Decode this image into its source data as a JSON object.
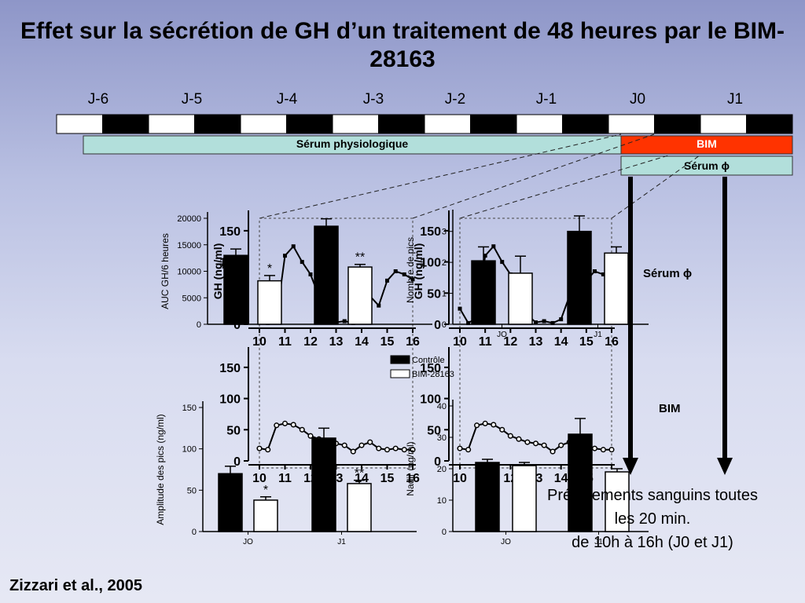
{
  "slide": {
    "title": "Effet sur la sécrétion de GH d’un traitement de 48 heures par le BIM-28163",
    "credit": "Zizzari et al., 2005",
    "note_line1": "Prélèvements sanguins toutes",
    "note_line2": "les 20 min.",
    "note_line3": "de 10h à 16h (J0 et J1)",
    "label_serum_right": "Sérum ϕ",
    "label_bim_right": "BIM"
  },
  "timeline": {
    "days": [
      "J-6",
      "J-5",
      "J-4",
      "J-3",
      "J-2",
      "J-1",
      "J0",
      "J1"
    ],
    "serum_label": "Sérum physiologique",
    "bim_label": "BIM",
    "serum_phi_label": "Sérum ϕ",
    "colors": {
      "serum": "#b2dfdb",
      "bim": "#ff3300"
    }
  },
  "legend": {
    "control": "Contrôle",
    "bim": "BIM-28163"
  },
  "chart_data": [
    {
      "id": "auc",
      "type": "bar",
      "categories": [
        "J0",
        "J1"
      ],
      "series": [
        {
          "name": "Contrôle",
          "values": [
            13000,
            18500
          ],
          "errors": [
            1200,
            1400
          ]
        },
        {
          "name": "BIM-28163",
          "values": [
            8200,
            10800
          ],
          "errors": [
            1000,
            500
          ]
        }
      ],
      "ylabel": "AUC GH/6 heures",
      "ylim": [
        0,
        20000
      ],
      "yticks": [
        "0",
        "5000",
        "10000",
        "15000",
        "20000"
      ],
      "annotations": [
        "*",
        "**"
      ]
    },
    {
      "id": "npics",
      "type": "bar",
      "categories": [
        "J0",
        "J1"
      ],
      "series": [
        {
          "name": "Contrôle",
          "values": [
            2.05,
            3.0
          ],
          "errors": [
            0.45,
            0.5
          ]
        },
        {
          "name": "BIM-28163",
          "values": [
            1.65,
            2.3
          ],
          "errors": [
            0.55,
            0.2
          ]
        }
      ],
      "ylabel": "Nombre de pics",
      "ylim": [
        0,
        3.5
      ],
      "yticks": [
        "0",
        "1",
        "2",
        "3"
      ],
      "xticks": [
        "JO",
        "J1"
      ]
    },
    {
      "id": "amp",
      "type": "bar",
      "categories": [
        "J0",
        "J1"
      ],
      "series": [
        {
          "name": "Contrôle",
          "values": [
            70,
            113
          ],
          "errors": [
            9,
            12
          ]
        },
        {
          "name": "BIM-28163",
          "values": [
            38,
            58
          ],
          "errors": [
            4,
            4
          ]
        }
      ],
      "ylabel": "Amplitude des pics (ng/ml)",
      "ylim": [
        0,
        150
      ],
      "yticks": [
        "0",
        "50",
        "100",
        "150"
      ],
      "xticks": [
        "JO",
        "J1"
      ],
      "annotations": [
        "*",
        "**"
      ]
    },
    {
      "id": "nadir",
      "type": "bar",
      "categories": [
        "J0",
        "J1"
      ],
      "series": [
        {
          "name": "Contrôle",
          "values": [
            22,
            31
          ],
          "errors": [
            1,
            5
          ]
        },
        {
          "name": "BIM-28163",
          "values": [
            21,
            19
          ],
          "errors": [
            1,
            1
          ]
        }
      ],
      "ylabel": "Nadir (ng/ml)",
      "ylim": [
        0,
        40
      ],
      "yticks": [
        "0",
        "10",
        "20",
        "30",
        "40"
      ],
      "xticks": [
        "JO",
        "J1"
      ]
    },
    {
      "id": "gh_serum",
      "type": "line",
      "x": [
        10,
        10.33,
        10.67,
        11,
        11.33,
        11.67,
        12,
        12.33,
        12.67,
        13,
        13.33,
        13.67,
        14,
        14.33,
        14.67,
        15,
        15.33,
        15.67,
        16
      ],
      "values": [
        25,
        2,
        10,
        110,
        125,
        100,
        80,
        45,
        15,
        3,
        5,
        2,
        8,
        45,
        30,
        70,
        85,
        80,
        72
      ],
      "ylabel": "GH (ng/ml)",
      "ylim": [
        0,
        170
      ],
      "yticks": [
        "0",
        "50",
        "100",
        "150"
      ],
      "xticks": [
        "10",
        "11",
        "12",
        "13",
        "14",
        "15",
        "16"
      ]
    },
    {
      "id": "gh_bim",
      "type": "line",
      "x": [
        10,
        10.33,
        10.67,
        11,
        11.33,
        11.67,
        12,
        12.33,
        12.67,
        13,
        13.33,
        13.67,
        14,
        14.33,
        14.67,
        15,
        15.33,
        15.67,
        16
      ],
      "values": [
        20,
        18,
        57,
        60,
        58,
        50,
        40,
        35,
        30,
        28,
        25,
        15,
        25,
        30,
        20,
        18,
        20,
        18,
        18
      ],
      "ylim": [
        0,
        170
      ],
      "yticks": [
        "0",
        "50",
        "100",
        "150"
      ],
      "xticks": [
        "10",
        "11",
        "12",
        "13",
        "14",
        "15",
        "16"
      ]
    }
  ]
}
